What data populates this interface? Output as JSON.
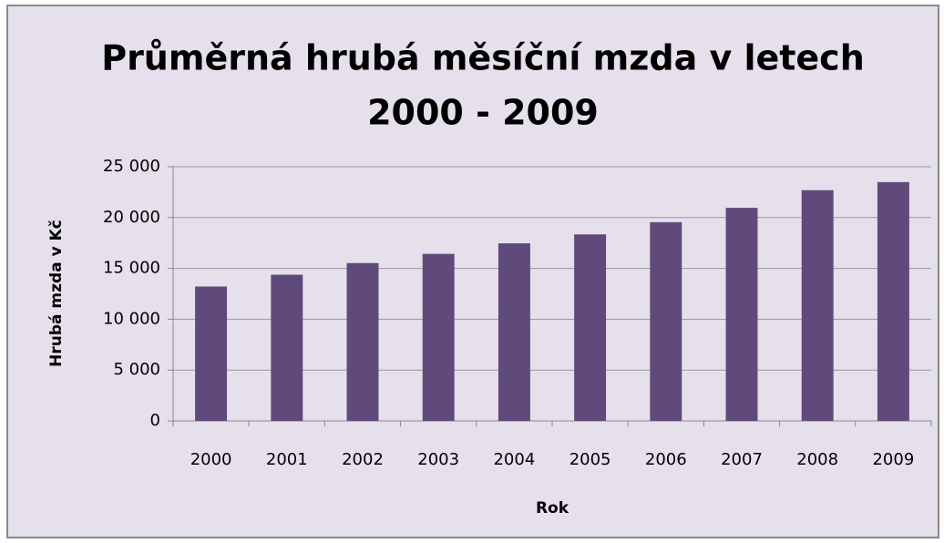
{
  "chart_data": {
    "type": "bar",
    "title": [
      "Průměrná hrubá měsíční mzda v letech",
      "2000 - 2009"
    ],
    "x_label": "Rok",
    "y_label": "Hrubá mzda v Kč",
    "categories": [
      "2000",
      "2001",
      "2002",
      "2003",
      "2004",
      "2005",
      "2006",
      "2007",
      "2008",
      "2009"
    ],
    "values": [
      13219,
      14378,
      15524,
      16430,
      17466,
      18344,
      19546,
      20957,
      22691,
      23488
    ],
    "color": "#604a7b",
    "ylim": [
      0,
      25000
    ],
    "yticks": [
      0,
      {
        "value": 5000,
        "label": "5 000"
      },
      {
        "value": 10000,
        "label": "10 000"
      },
      {
        "value": 15000,
        "label": "15 000"
      },
      {
        "value": 20000,
        "label": "20 000"
      },
      {
        "value": 25000,
        "label": "25 000"
      }
    ],
    "grid": true
  }
}
